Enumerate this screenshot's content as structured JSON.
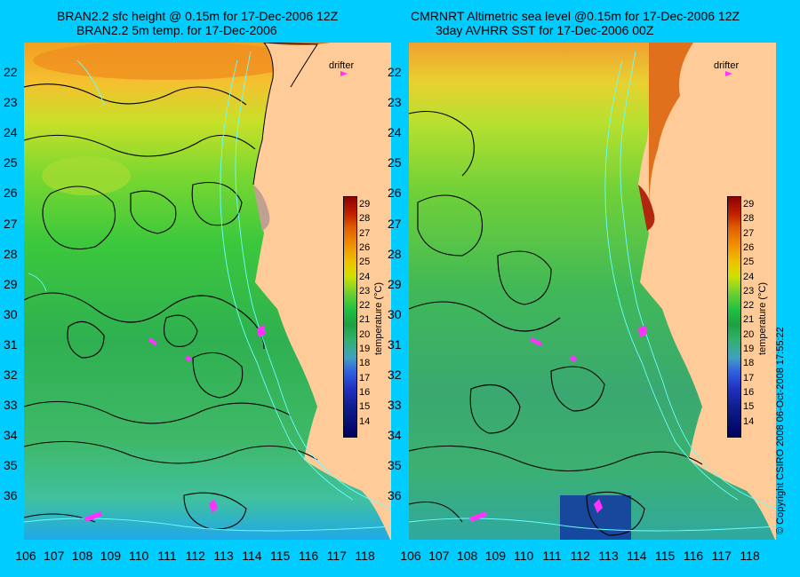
{
  "left": {
    "title_line1": "BRAN2.2 sfc height @ 0.15m for 17-Dec-2006 12Z",
    "title_line2": "BRAN2.2 5m temp. for 17-Dec-2006",
    "drifter_label": "drifter",
    "colorbar_title": "temperature (°C)"
  },
  "right": {
    "title_line1": "CMRNRT Altimetric sea level  @0.15m  for 17-Dec-2006 12Z",
    "title_line2": "3day AVHRR SST for 17-Dec-2006 00Z",
    "drifter_label": "drifter",
    "colorbar_title": "temperature (°C)"
  },
  "latitudes": [
    "22",
    "23",
    "24",
    "25",
    "26",
    "27",
    "28",
    "29",
    "30",
    "31",
    "32",
    "33",
    "34",
    "35",
    "36"
  ],
  "longitudes": [
    "106",
    "107",
    "108",
    "109",
    "110",
    "111",
    "112",
    "113",
    "114",
    "115",
    "116",
    "117",
    "118"
  ],
  "colorbar_ticks": [
    "29",
    "28",
    "27",
    "26",
    "25",
    "24",
    "23",
    "22",
    "21",
    "20",
    "19",
    "18",
    "17",
    "16",
    "15",
    "14"
  ],
  "copyright": "© Copyright CSIRO 2008   06-Oct-2008 17:55:22",
  "colors": {
    "background": "#00ccff",
    "land": "#ffcc99",
    "contour": "#000000",
    "bathymetry": "#66ffff",
    "drifter": "#ff33ff"
  }
}
